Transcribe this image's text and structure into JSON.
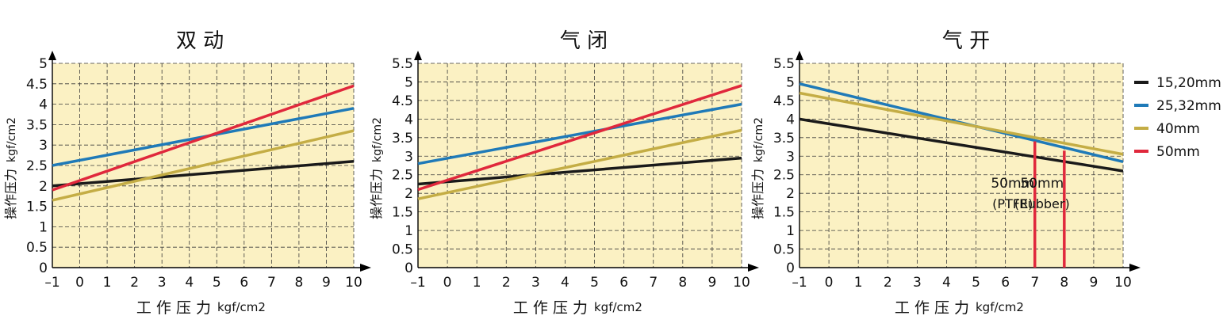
{
  "chart_data": [
    {
      "type": "line",
      "title": "双 动",
      "xlabel": "工 作 压 力",
      "xunit": "kgf/cm2",
      "ylabel": "操作压力",
      "yunit": "kgf/cm2",
      "xlim": [
        -1,
        10
      ],
      "ylim": [
        0,
        5
      ],
      "xticks": [
        "–1",
        "0",
        "1",
        "2",
        "3",
        "4",
        "5",
        "6",
        "7",
        "8",
        "9",
        "10"
      ],
      "yticks": [
        "0",
        "0.5",
        "1",
        "1.5",
        "2",
        "2.5",
        "3",
        "3.5",
        "4",
        "4.5",
        "5"
      ],
      "grid": true,
      "background": "#fbf1c3",
      "series": [
        {
          "name": "15,20mm",
          "color": "#1a1a1a",
          "x": [
            -1,
            10
          ],
          "y": [
            2.0,
            2.6
          ]
        },
        {
          "name": "25,32mm",
          "color": "#1f7ab8",
          "x": [
            -1,
            10
          ],
          "y": [
            2.5,
            3.9
          ]
        },
        {
          "name": "40mm",
          "color": "#c4ad45",
          "x": [
            -1,
            10
          ],
          "y": [
            1.65,
            3.35
          ]
        },
        {
          "name": "50mm",
          "color": "#e0283c",
          "x": [
            -1,
            10
          ],
          "y": [
            1.9,
            4.45
          ]
        }
      ]
    },
    {
      "type": "line",
      "title": "气 闭",
      "xlabel": "工 作 压 力",
      "xunit": "kgf/cm2",
      "ylabel": "操作压力",
      "yunit": "kgf/cm2",
      "xlim": [
        -1,
        10
      ],
      "ylim": [
        0,
        5.5
      ],
      "xticks": [
        "–1",
        "0",
        "1",
        "2",
        "3",
        "4",
        "5",
        "6",
        "7",
        "8",
        "9",
        "10"
      ],
      "yticks": [
        "0",
        "0.5",
        "1",
        "1.5",
        "2",
        "2.5",
        "3",
        "3.5",
        "4",
        "4.5",
        "5",
        "5.5"
      ],
      "grid": true,
      "background": "#fbf1c3",
      "series": [
        {
          "name": "15,20mm",
          "color": "#1a1a1a",
          "x": [
            -1,
            10
          ],
          "y": [
            2.25,
            2.95
          ]
        },
        {
          "name": "25,32mm",
          "color": "#1f7ab8",
          "x": [
            -1,
            10
          ],
          "y": [
            2.8,
            4.4
          ]
        },
        {
          "name": "40mm",
          "color": "#c4ad45",
          "x": [
            -1,
            10
          ],
          "y": [
            1.85,
            3.7
          ]
        },
        {
          "name": "50mm",
          "color": "#e0283c",
          "x": [
            -1,
            10
          ],
          "y": [
            2.1,
            4.9
          ]
        }
      ]
    },
    {
      "type": "line",
      "title": "气 开",
      "xlabel": "工 作 压 力",
      "xunit": "kgf/cm2",
      "ylabel": "操作压力",
      "yunit": "kgf/cm2",
      "xlim": [
        -1,
        10
      ],
      "ylim": [
        0,
        5.5
      ],
      "xticks": [
        "–1",
        "0",
        "1",
        "2",
        "3",
        "4",
        "5",
        "6",
        "7",
        "8",
        "9",
        "10"
      ],
      "yticks": [
        "0",
        "0.5",
        "1",
        "1.5",
        "2",
        "2.5",
        "3",
        "3.5",
        "4",
        "4.5",
        "5",
        "5.5"
      ],
      "grid": true,
      "background": "#fbf1c3",
      "series": [
        {
          "name": "15,20mm",
          "color": "#1a1a1a",
          "x": [
            -1,
            10
          ],
          "y": [
            4.0,
            2.6
          ]
        },
        {
          "name": "25,32mm",
          "color": "#1f7ab8",
          "x": [
            -1,
            10
          ],
          "y": [
            4.95,
            2.85
          ]
        },
        {
          "name": "40mm",
          "color": "#c4ad45",
          "x": [
            -1,
            10
          ],
          "y": [
            4.7,
            3.05
          ]
        }
      ],
      "limit_lines": [
        {
          "x": 7,
          "y_top": 3.4,
          "color": "#e0283c",
          "label_top": "50mm",
          "label_bottom": "(PTFE)"
        },
        {
          "x": 8,
          "y_top": 3.15,
          "color": "#e0283c",
          "label_top": "50mm",
          "label_bottom": "(Rubber)"
        }
      ]
    }
  ],
  "legend": {
    "placement": "right",
    "items": [
      {
        "label": "15,20mm",
        "color": "#1a1a1a"
      },
      {
        "label": "25,32mm",
        "color": "#1f7ab8"
      },
      {
        "label": "40mm",
        "color": "#c4ad45"
      },
      {
        "label": "50mm",
        "color": "#e0283c"
      }
    ]
  }
}
